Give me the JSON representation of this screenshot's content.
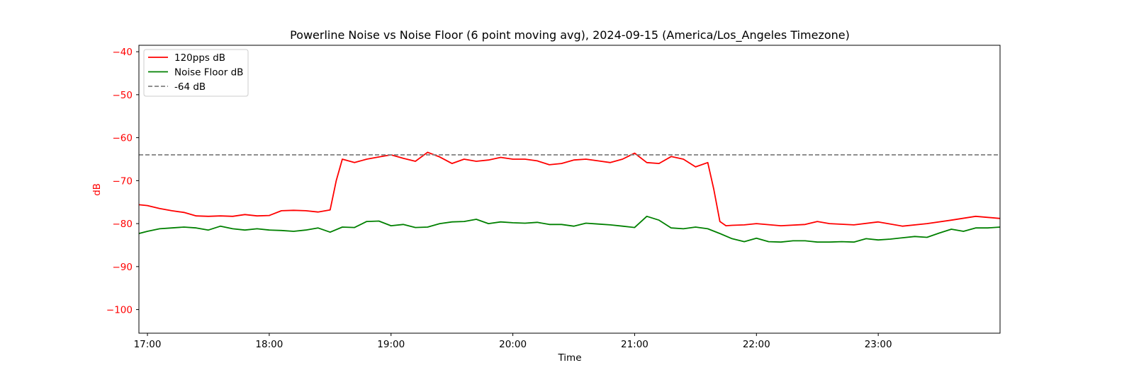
{
  "chart_data": {
    "type": "line",
    "title": "Powerline Noise vs Noise Floor (6 point moving avg), 2024-09-15 (America/Los_Angeles Timezone)",
    "xlabel": "Time",
    "ylabel": "dB",
    "x_unit": "hours (local time, 24h clock)",
    "xlim": [
      16.93,
      24.0
    ],
    "ylim": [
      -105.5,
      -38.5
    ],
    "x_ticks": [
      {
        "value": 17,
        "label": "17:00"
      },
      {
        "value": 18,
        "label": "18:00"
      },
      {
        "value": 19,
        "label": "19:00"
      },
      {
        "value": 20,
        "label": "20:00"
      },
      {
        "value": 21,
        "label": "21:00"
      },
      {
        "value": 22,
        "label": "22:00"
      },
      {
        "value": 23,
        "label": "23:00"
      }
    ],
    "y_ticks": [
      {
        "value": -40,
        "label": "−40"
      },
      {
        "value": -50,
        "label": "−50"
      },
      {
        "value": -60,
        "label": "−60"
      },
      {
        "value": -70,
        "label": "−70"
      },
      {
        "value": -80,
        "label": "−80"
      },
      {
        "value": -90,
        "label": "−90"
      },
      {
        "value": -100,
        "label": "−100"
      }
    ],
    "grid": false,
    "legend_position": "upper-left",
    "y_tick_color": "#ff0000",
    "series": [
      {
        "name": "120pps dB",
        "color": "#ff0000",
        "style": "solid",
        "x": [
          16.93,
          17.0,
          17.1,
          17.2,
          17.3,
          17.4,
          17.5,
          17.6,
          17.7,
          17.8,
          17.9,
          18.0,
          18.1,
          18.2,
          18.3,
          18.4,
          18.5,
          18.55,
          18.6,
          18.7,
          18.8,
          18.9,
          19.0,
          19.1,
          19.2,
          19.3,
          19.4,
          19.5,
          19.6,
          19.7,
          19.8,
          19.9,
          20.0,
          20.1,
          20.2,
          20.3,
          20.4,
          20.5,
          20.6,
          20.7,
          20.8,
          20.9,
          21.0,
          21.1,
          21.2,
          21.3,
          21.4,
          21.5,
          21.6,
          21.65,
          21.7,
          21.75,
          21.8,
          21.9,
          22.0,
          22.2,
          22.4,
          22.5,
          22.6,
          22.8,
          23.0,
          23.2,
          23.4,
          23.6,
          23.8,
          24.0
        ],
        "y": [
          -75.6,
          -75.8,
          -76.5,
          -77.0,
          -77.4,
          -78.2,
          -78.3,
          -78.2,
          -78.3,
          -77.9,
          -78.2,
          -78.1,
          -77.0,
          -76.9,
          -77.0,
          -77.3,
          -76.8,
          -70.0,
          -65.0,
          -65.8,
          -65.0,
          -64.5,
          -64.0,
          -64.8,
          -65.5,
          -63.4,
          -64.5,
          -66.0,
          -65.0,
          -65.5,
          -65.2,
          -64.6,
          -65.0,
          -65.0,
          -65.4,
          -66.3,
          -66.0,
          -65.2,
          -65.0,
          -65.4,
          -65.8,
          -65.0,
          -63.6,
          -65.8,
          -66.0,
          -64.4,
          -65.0,
          -66.8,
          -65.8,
          -72.0,
          -79.5,
          -80.5,
          -80.4,
          -80.3,
          -80.0,
          -80.5,
          -80.2,
          -79.5,
          -80.0,
          -80.3,
          -79.6,
          -80.6,
          -80.0,
          -79.2,
          -78.3,
          -78.8
        ]
      },
      {
        "name": "Noise Floor dB",
        "color": "#008000",
        "style": "solid",
        "x": [
          16.93,
          17.0,
          17.1,
          17.2,
          17.3,
          17.4,
          17.5,
          17.6,
          17.7,
          17.8,
          17.9,
          18.0,
          18.1,
          18.2,
          18.3,
          18.4,
          18.5,
          18.6,
          18.7,
          18.8,
          18.9,
          19.0,
          19.1,
          19.2,
          19.3,
          19.4,
          19.5,
          19.6,
          19.7,
          19.8,
          19.9,
          20.0,
          20.1,
          20.2,
          20.3,
          20.4,
          20.5,
          20.6,
          20.7,
          20.8,
          20.9,
          21.0,
          21.1,
          21.2,
          21.3,
          21.4,
          21.5,
          21.6,
          21.7,
          21.8,
          21.9,
          22.0,
          22.1,
          22.2,
          22.3,
          22.4,
          22.5,
          22.6,
          22.7,
          22.8,
          22.9,
          23.0,
          23.1,
          23.2,
          23.3,
          23.4,
          23.5,
          23.6,
          23.7,
          23.8,
          23.9,
          24.0
        ],
        "y": [
          -82.3,
          -81.8,
          -81.2,
          -81.0,
          -80.8,
          -81.0,
          -81.5,
          -80.6,
          -81.2,
          -81.5,
          -81.2,
          -81.5,
          -81.6,
          -81.8,
          -81.5,
          -81.0,
          -82.0,
          -80.8,
          -80.9,
          -79.5,
          -79.4,
          -80.5,
          -80.2,
          -80.9,
          -80.8,
          -80.0,
          -79.6,
          -79.5,
          -79.0,
          -80.0,
          -79.6,
          -79.8,
          -79.9,
          -79.7,
          -80.2,
          -80.2,
          -80.6,
          -79.9,
          -80.1,
          -80.3,
          -80.6,
          -80.9,
          -78.3,
          -79.2,
          -81.0,
          -81.2,
          -80.8,
          -81.2,
          -82.3,
          -83.5,
          -84.2,
          -83.4,
          -84.2,
          -84.3,
          -84.0,
          -84.0,
          -84.3,
          -84.3,
          -84.2,
          -84.3,
          -83.5,
          -83.8,
          -83.6,
          -83.3,
          -83.0,
          -83.2,
          -82.2,
          -81.3,
          -81.8,
          -81.0,
          -81.0,
          -80.8
        ]
      },
      {
        "name": "-64 dB",
        "color": "#808080",
        "style": "dashed",
        "x": [
          16.93,
          24.0
        ],
        "y": [
          -64,
          -64
        ]
      }
    ]
  }
}
